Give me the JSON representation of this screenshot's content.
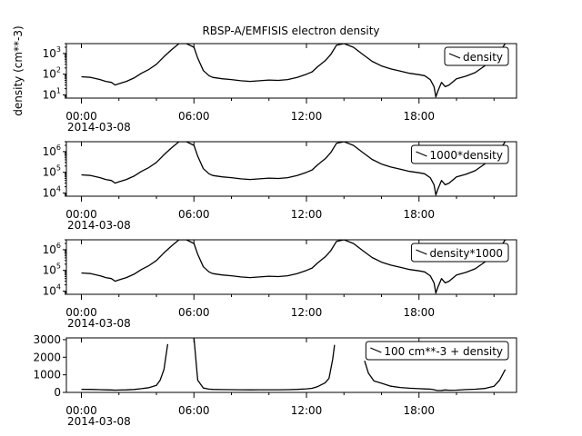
{
  "title": "RBSP-A/EMFISIS  electron density",
  "chart_data": [
    {
      "type": "line",
      "ylabel": "density (cm**-3)",
      "yscale": "log",
      "ylim": [
        7,
        3000
      ],
      "ytick_base": "10",
      "yticks": [
        {
          "value": 10,
          "exp": "1"
        },
        {
          "value": 100,
          "exp": "2"
        },
        {
          "value": 1000,
          "exp": "3"
        }
      ],
      "xlim": [
        -0.8,
        23.2
      ],
      "xticks": [
        {
          "value": 0,
          "label": "00:00"
        },
        {
          "value": 6,
          "label": "06:00"
        },
        {
          "value": 12,
          "label": "12:00"
        },
        {
          "value": 18,
          "label": "18:00"
        }
      ],
      "date_label": "2014-03-08",
      "legend": "density",
      "legend_position": "top-right",
      "series": [
        {
          "name": "density",
          "x": [
            0,
            0.5,
            1,
            1.3,
            1.6,
            1.8,
            2,
            2.4,
            2.8,
            3.2,
            3.6,
            4,
            4.4,
            4.8,
            5.2,
            5.6,
            6,
            6.2,
            6.5,
            6.8,
            7,
            7.5,
            8,
            8.5,
            9,
            9.5,
            10,
            10.5,
            11,
            11.5,
            12,
            12.3,
            12.6,
            13,
            13.3,
            13.6,
            14,
            14.5,
            15,
            15.5,
            16,
            16.5,
            17,
            17.5,
            18,
            18.3,
            18.6,
            18.8,
            18.9,
            19,
            19.2,
            19.4,
            19.6,
            20,
            20.5,
            21,
            21.5,
            22,
            22.3,
            22.6
          ],
          "y": [
            75,
            70,
            55,
            45,
            40,
            30,
            35,
            45,
            65,
            110,
            170,
            300,
            700,
            1500,
            3000,
            3000,
            2000,
            600,
            150,
            85,
            70,
            60,
            55,
            48,
            45,
            48,
            52,
            50,
            55,
            70,
            100,
            130,
            230,
            450,
            900,
            2500,
            3000,
            2000,
            900,
            420,
            250,
            180,
            140,
            110,
            95,
            85,
            55,
            25,
            8,
            15,
            40,
            25,
            30,
            60,
            80,
            120,
            250,
            600,
            1200,
            3000
          ]
        }
      ]
    },
    {
      "type": "line",
      "ylabel": "",
      "yscale": "log",
      "ylim": [
        7000,
        3000000
      ],
      "ytick_base": "10",
      "yticks": [
        {
          "value": 10000,
          "exp": "4"
        },
        {
          "value": 100000,
          "exp": "5"
        },
        {
          "value": 1000000,
          "exp": "6"
        }
      ],
      "xlim": [
        -0.8,
        23.2
      ],
      "xticks": [
        {
          "value": 0,
          "label": "00:00"
        },
        {
          "value": 6,
          "label": "06:00"
        },
        {
          "value": 12,
          "label": "12:00"
        },
        {
          "value": 18,
          "label": "18:00"
        }
      ],
      "date_label": "2014-03-08",
      "legend": "1000*density",
      "legend_position": "top-right",
      "series": [
        {
          "name": "1000*density",
          "x": [
            0,
            0.5,
            1,
            1.3,
            1.6,
            1.8,
            2,
            2.4,
            2.8,
            3.2,
            3.6,
            4,
            4.4,
            4.8,
            5.2,
            5.6,
            6,
            6.2,
            6.5,
            6.8,
            7,
            7.5,
            8,
            8.5,
            9,
            9.5,
            10,
            10.5,
            11,
            11.5,
            12,
            12.3,
            12.6,
            13,
            13.3,
            13.6,
            14,
            14.5,
            15,
            15.5,
            16,
            16.5,
            17,
            17.5,
            18,
            18.3,
            18.6,
            18.8,
            18.9,
            19,
            19.2,
            19.4,
            19.6,
            20,
            20.5,
            21,
            21.5,
            22,
            22.3,
            22.6
          ],
          "y": [
            75000,
            70000,
            55000,
            45000,
            40000,
            30000,
            35000,
            45000,
            65000,
            110000,
            170000,
            300000,
            700000,
            1500000,
            3000000,
            3000000,
            2000000,
            600000,
            150000,
            85000,
            70000,
            60000,
            55000,
            48000,
            45000,
            48000,
            52000,
            50000,
            55000,
            70000,
            100000,
            130000,
            230000,
            450000,
            900000,
            2500000,
            3000000,
            2000000,
            900000,
            420000,
            250000,
            180000,
            140000,
            110000,
            95000,
            85000,
            55000,
            25000,
            8000,
            15000,
            40000,
            25000,
            30000,
            60000,
            80000,
            120000,
            250000,
            600000,
            1200000,
            3000000
          ]
        }
      ]
    },
    {
      "type": "line",
      "ylabel": "",
      "yscale": "log",
      "ylim": [
        7000,
        3000000
      ],
      "ytick_base": "10",
      "yticks": [
        {
          "value": 10000,
          "exp": "4"
        },
        {
          "value": 100000,
          "exp": "5"
        },
        {
          "value": 1000000,
          "exp": "6"
        }
      ],
      "xlim": [
        -0.8,
        23.2
      ],
      "xticks": [
        {
          "value": 0,
          "label": "00:00"
        },
        {
          "value": 6,
          "label": "06:00"
        },
        {
          "value": 12,
          "label": "12:00"
        },
        {
          "value": 18,
          "label": "18:00"
        }
      ],
      "date_label": "2014-03-08",
      "legend": "density*1000",
      "legend_position": "top-right",
      "series": [
        {
          "name": "density*1000",
          "x": [
            0,
            0.5,
            1,
            1.3,
            1.6,
            1.8,
            2,
            2.4,
            2.8,
            3.2,
            3.6,
            4,
            4.4,
            4.8,
            5.2,
            5.6,
            6,
            6.2,
            6.5,
            6.8,
            7,
            7.5,
            8,
            8.5,
            9,
            9.5,
            10,
            10.5,
            11,
            11.5,
            12,
            12.3,
            12.6,
            13,
            13.3,
            13.6,
            14,
            14.5,
            15,
            15.5,
            16,
            16.5,
            17,
            17.5,
            18,
            18.3,
            18.6,
            18.8,
            18.9,
            19,
            19.2,
            19.4,
            19.6,
            20,
            20.5,
            21,
            21.5,
            22,
            22.3,
            22.6
          ],
          "y": [
            75000,
            70000,
            55000,
            45000,
            40000,
            30000,
            35000,
            45000,
            65000,
            110000,
            170000,
            300000,
            700000,
            1500000,
            3000000,
            3000000,
            2000000,
            600000,
            150000,
            85000,
            70000,
            60000,
            55000,
            48000,
            45000,
            48000,
            52000,
            50000,
            55000,
            70000,
            100000,
            130000,
            230000,
            450000,
            900000,
            2500000,
            3000000,
            2000000,
            900000,
            420000,
            250000,
            180000,
            140000,
            110000,
            95000,
            85000,
            55000,
            25000,
            8000,
            15000,
            40000,
            25000,
            30000,
            60000,
            80000,
            120000,
            250000,
            600000,
            1200000,
            3000000
          ]
        }
      ]
    },
    {
      "type": "line",
      "ylabel": "",
      "yscale": "linear",
      "ylim": [
        0,
        3100
      ],
      "yticks": [
        {
          "value": 0,
          "label": "0"
        },
        {
          "value": 1000,
          "label": "1000"
        },
        {
          "value": 2000,
          "label": "2000"
        },
        {
          "value": 3000,
          "label": "3000"
        }
      ],
      "xlim": [
        -0.8,
        23.2
      ],
      "xticks": [
        {
          "value": 0,
          "label": "00:00"
        },
        {
          "value": 6,
          "label": "06:00"
        },
        {
          "value": 12,
          "label": "12:00"
        },
        {
          "value": 18,
          "label": "18:00"
        }
      ],
      "date_label": "2014-03-08",
      "legend": "100 cm**-3 + density",
      "legend_position": "top-right",
      "series": [
        {
          "name": "100 cm**-3 + density",
          "x": [
            0,
            0.5,
            1,
            1.3,
            1.6,
            1.8,
            2,
            2.4,
            2.8,
            3.2,
            3.6,
            4,
            4.2,
            4.4,
            4.6
          ],
          "y": [
            175,
            170,
            155,
            145,
            140,
            130,
            135,
            145,
            165,
            210,
            270,
            400,
            700,
            1300,
            2750
          ]
        },
        {
          "name": "100 cm**-3 + density",
          "x": [
            6,
            6.2,
            6.5,
            6.8,
            7,
            7.5,
            8,
            8.5,
            9,
            9.5,
            10,
            10.5,
            11,
            11.5,
            12,
            12.3,
            12.6,
            13,
            13.2,
            13.4,
            13.5
          ],
          "y": [
            3100,
            700,
            250,
            185,
            170,
            160,
            155,
            148,
            145,
            148,
            152,
            150,
            155,
            170,
            200,
            230,
            330,
            550,
            800,
            1900,
            2700
          ]
        },
        {
          "name": "100 cm**-3 + density",
          "x": [
            15.1,
            15.3,
            15.6,
            16,
            16.5,
            17,
            17.5,
            18,
            18.3,
            18.6,
            18.8,
            18.9,
            19,
            19.2,
            19.4,
            19.6,
            20,
            20.5,
            21,
            21.5,
            22,
            22.3,
            22.6
          ],
          "y": [
            1800,
            1100,
            650,
            520,
            350,
            280,
            240,
            210,
            195,
            185,
            155,
            125,
            108,
            115,
            140,
            125,
            130,
            160,
            180,
            220,
            350,
            700,
            1300
          ]
        }
      ]
    }
  ]
}
